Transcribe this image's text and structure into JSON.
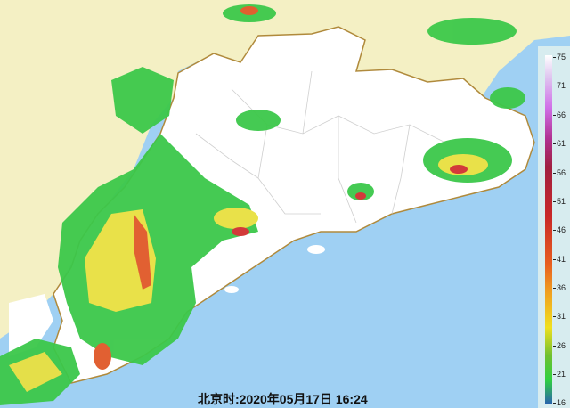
{
  "map": {
    "colors": {
      "sea": "#9fd0f3",
      "land_outside": "#f4f0c4",
      "land_province": "#ffffff",
      "border": "#b08a3c",
      "county_border": "#cccccc"
    }
  },
  "legend": {
    "ticks": [
      "75",
      "71",
      "66",
      "61",
      "56",
      "51",
      "46",
      "41",
      "36",
      "31",
      "26",
      "21",
      "16"
    ],
    "unit_range": [
      16,
      75
    ]
  },
  "timestamp": "北京时:2020年05月17日 16:24"
}
